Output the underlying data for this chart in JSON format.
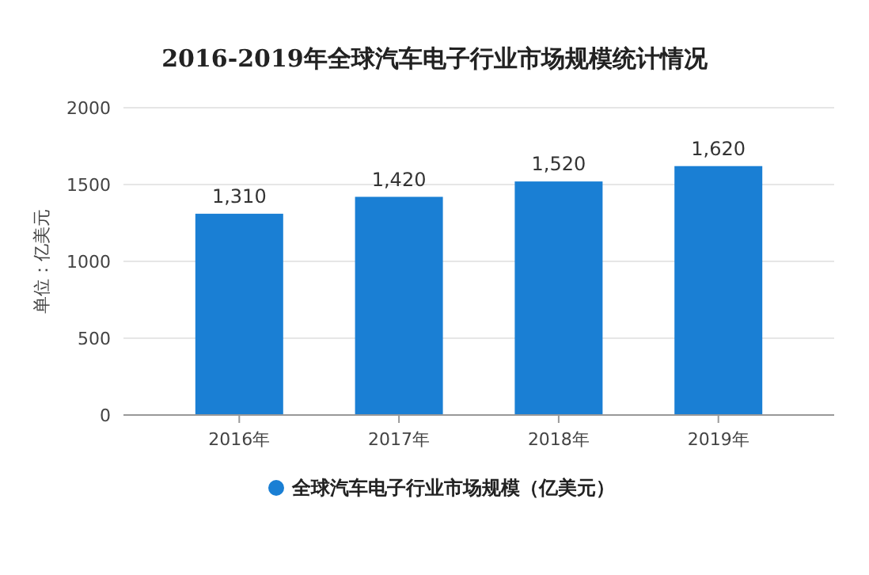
{
  "chart_data": {
    "type": "bar",
    "title": "2016-2019年全球汽车电子行业市场规模统计情况",
    "ylabel": "单位：亿美元",
    "categories": [
      "2016年",
      "2017年",
      "2018年",
      "2019年"
    ],
    "series": [
      {
        "name": "全球汽车电子行业市场规模（亿美元）",
        "color": "#1a7fd4",
        "values": [
          1310,
          1420,
          1520,
          1620
        ],
        "value_labels": [
          "1,310",
          "1,420",
          "1,520",
          "1,620"
        ]
      }
    ],
    "ylim": [
      0,
      2000
    ],
    "yticks": [
      0,
      500,
      1000,
      1500,
      2000
    ],
    "grid": "y",
    "legend": "bottom"
  }
}
